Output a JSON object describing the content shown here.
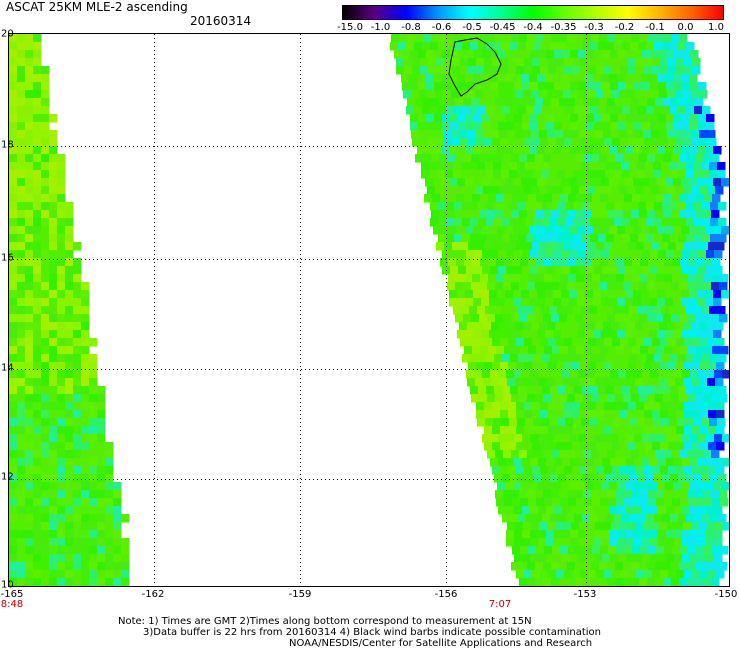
{
  "header": {
    "title": "ASCAT 25KM MLE-2 ascending",
    "date": "20160314"
  },
  "colorbar": {
    "labels": [
      "-15.0",
      "-1.0",
      "-0.8",
      "-0.6",
      "-0.5",
      "-0.45",
      "-0.4",
      "-0.35",
      "-0.3",
      "-0.2",
      "-0.1",
      "0.0",
      "1.0"
    ],
    "colors": [
      "#000000",
      "#5a0082",
      "#0000ff",
      "#0096ff",
      "#00ffff",
      "#00ff96",
      "#00ff00",
      "#64ff00",
      "#b4ff00",
      "#ffff00",
      "#ffb400",
      "#ff6400",
      "#ff0000"
    ]
  },
  "map": {
    "lat_labels": [
      "20",
      "18",
      "16",
      "14",
      "12",
      "10"
    ],
    "lon_labels": [
      "-165",
      "-162",
      "-159",
      "-156",
      "-153",
      "-150"
    ],
    "time_labels": [
      {
        "text": "8:48",
        "lon": "-165"
      },
      {
        "text": "7:07",
        "lon": "-155"
      }
    ],
    "lat_range": [
      10,
      20
    ],
    "lon_range": [
      -165,
      -150
    ],
    "grid": "dotted",
    "island": "Hawaii (Big Island) coastline outline"
  },
  "notes": {
    "line1": "Note: 1) Times are GMT 2)Times along bottom correspond to measurement at 15N",
    "line2": "3)Data buffer is 22 hrs from 20160314 4) Black wind barbs indicate possible contamination",
    "line3": "NOAA/NESDIS/Center for Satellite Applications and Research"
  }
}
